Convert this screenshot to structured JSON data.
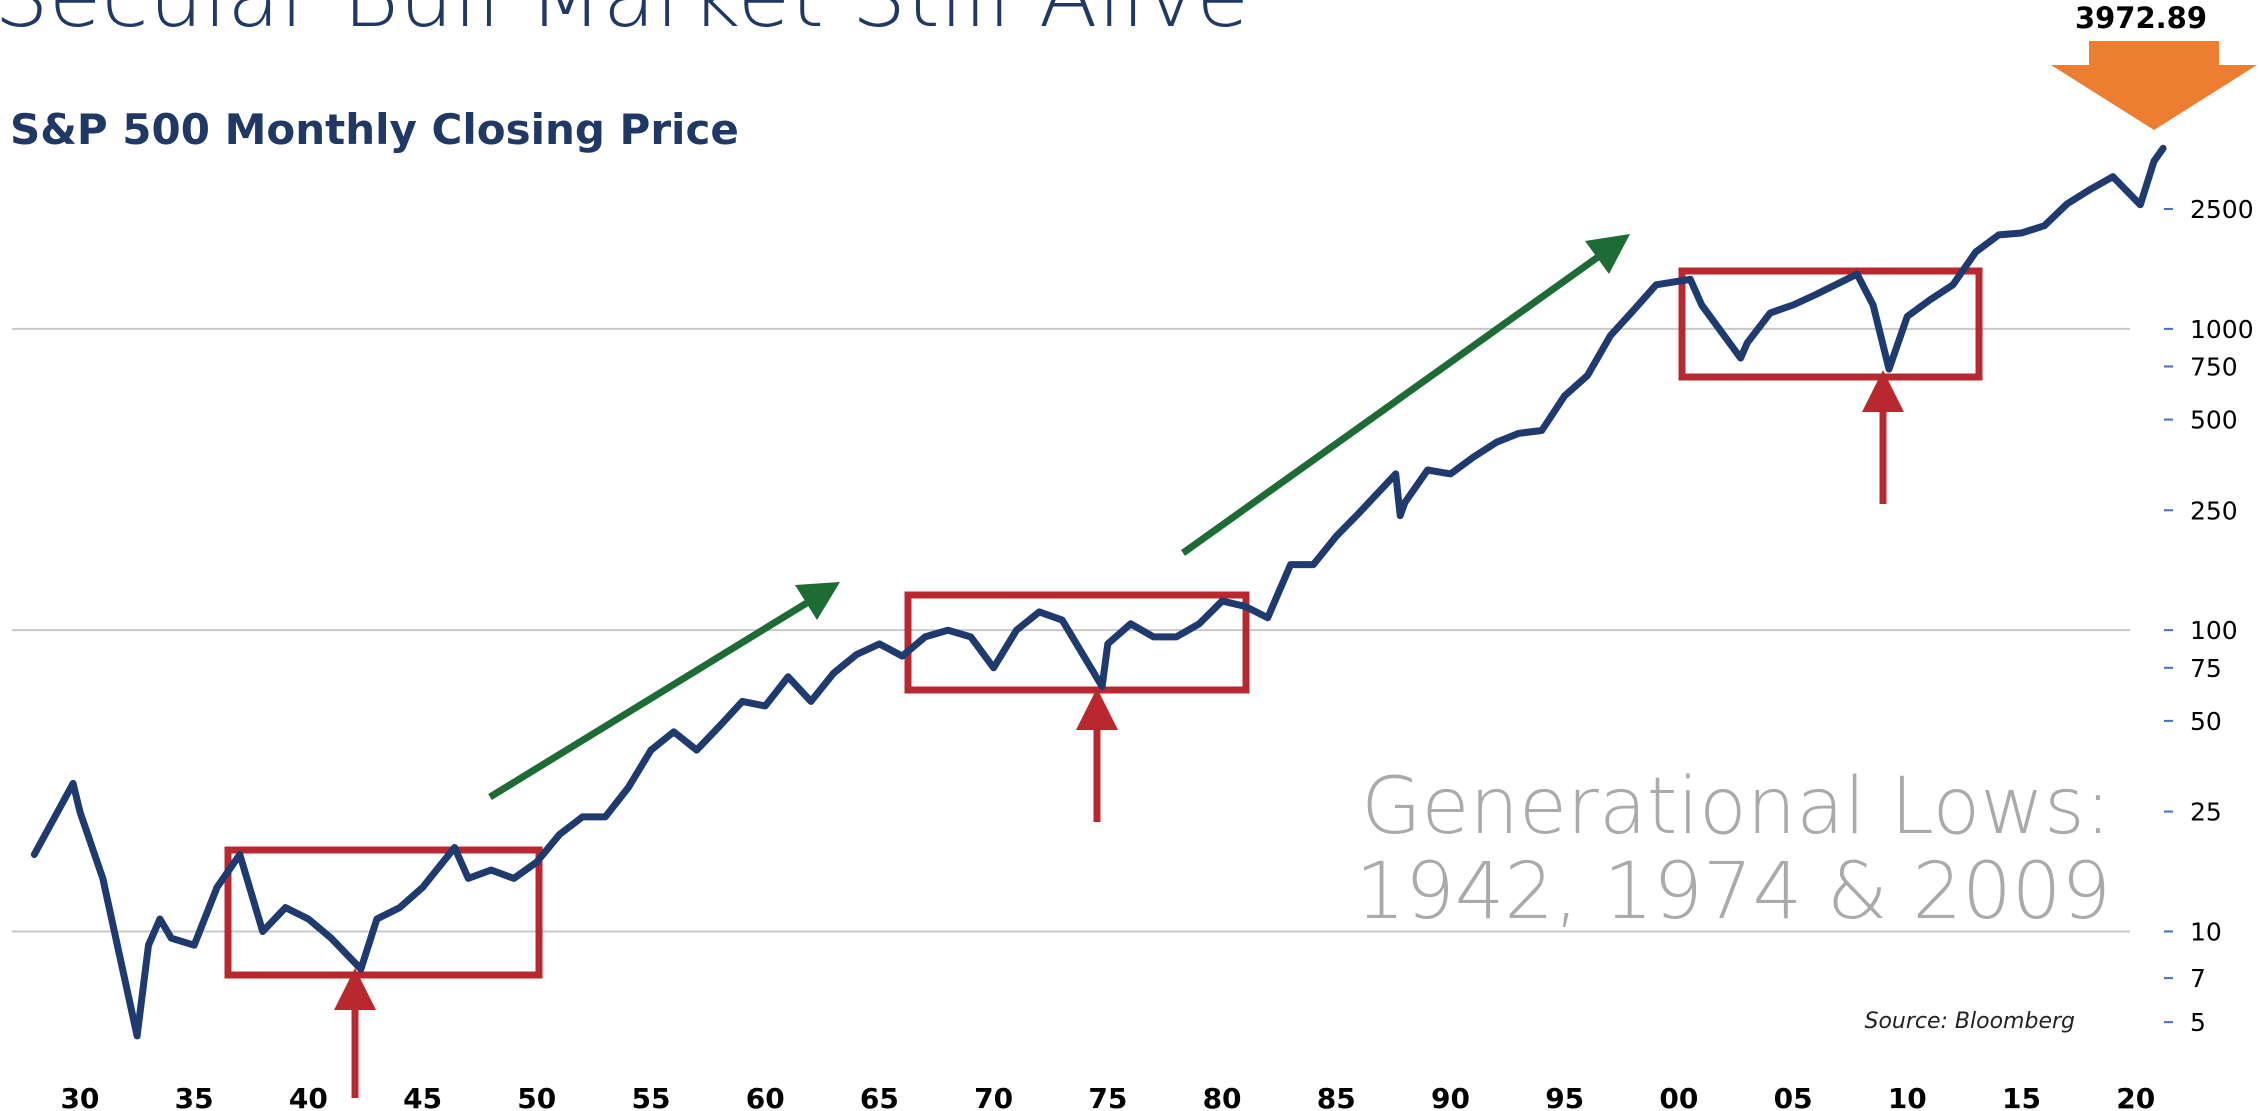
{
  "chart_data": {
    "type": "line",
    "title": "Secular Bull Market Still Alive",
    "subtitle": "S&P 500 Monthly Closing Price",
    "annotations": [
      "Generational Lows:",
      "1942, 1974 & 2009"
    ],
    "source": "Source: Bloomberg",
    "color": "#1f3a6e",
    "log_scale": true,
    "grid_values": [
      10,
      100,
      1000
    ],
    "xlim": [
      1926.5,
      2021.5
    ],
    "ylim": [
      3,
      6000
    ],
    "xticks": [
      {
        "value": 1930,
        "label": "30"
      },
      {
        "value": 1935,
        "label": "35"
      },
      {
        "value": 1940,
        "label": "40"
      },
      {
        "value": 1945,
        "label": "45"
      },
      {
        "value": 1950,
        "label": "50"
      },
      {
        "value": 1955,
        "label": "55"
      },
      {
        "value": 1960,
        "label": "60"
      },
      {
        "value": 1965,
        "label": "65"
      },
      {
        "value": 1970,
        "label": "70"
      },
      {
        "value": 1975,
        "label": "75"
      },
      {
        "value": 1980,
        "label": "80"
      },
      {
        "value": 1985,
        "label": "85"
      },
      {
        "value": 1990,
        "label": "90"
      },
      {
        "value": 1995,
        "label": "95"
      },
      {
        "value": 2000,
        "label": "00"
      },
      {
        "value": 2005,
        "label": "05"
      },
      {
        "value": 2010,
        "label": "10"
      },
      {
        "value": 2015,
        "label": "15"
      },
      {
        "value": 2020,
        "label": "20"
      }
    ],
    "yticks": [
      5,
      7,
      10,
      25,
      50,
      75,
      100,
      250,
      500,
      750,
      1000,
      2500
    ],
    "x": [
      1928,
      1929.7,
      1930,
      1931,
      1932.5,
      1933,
      1933.5,
      1934,
      1935,
      1936,
      1937,
      1938,
      1939,
      1940,
      1941,
      1942.3,
      1943,
      1944,
      1945,
      1946.4,
      1947,
      1948,
      1949,
      1950,
      1951,
      1952,
      1953,
      1954,
      1955,
      1956,
      1957,
      1958,
      1959,
      1960,
      1961,
      1962,
      1963,
      1964,
      1965,
      1966,
      1967,
      1968,
      1969,
      1970,
      1971,
      1972,
      1973,
      1974.75,
      1975,
      1976,
      1977,
      1978,
      1979,
      1980,
      1981,
      1982,
      1983,
      1984,
      1985,
      1986,
      1987.6,
      1987.8,
      1988,
      1989,
      1990,
      1991,
      1992,
      1993,
      1994,
      1995,
      1996,
      1997,
      1998,
      1999,
      2000.5,
      2001,
      2002.7,
      2003,
      2004,
      2005,
      2006,
      2007.8,
      2008.5,
      2009.2,
      2010,
      2011,
      2012,
      2013,
      2014,
      2015,
      2016,
      2017,
      2018,
      2019,
      2020.2,
      2020.8,
      2021.2
    ],
    "values": [
      18,
      31,
      25,
      15,
      4.5,
      9,
      11,
      9.5,
      9,
      14,
      18,
      10,
      12,
      11,
      9.5,
      7.5,
      11,
      12,
      14,
      19,
      15,
      16,
      15,
      17,
      21,
      24,
      24,
      30,
      40,
      46,
      40,
      48,
      58,
      56,
      70,
      58,
      72,
      83,
      90,
      82,
      95,
      100,
      95,
      75,
      100,
      115,
      108,
      65,
      90,
      105,
      95,
      95,
      105,
      125,
      120,
      110,
      165,
      165,
      205,
      245,
      330,
      240,
      265,
      340,
      330,
      375,
      420,
      450,
      460,
      600,
      700,
      950,
      1150,
      1400,
      1460,
      1200,
      800,
      900,
      1130,
      1200,
      1300,
      1520,
      1200,
      735,
      1100,
      1250,
      1400,
      1800,
      2050,
      2080,
      2200,
      2600,
      2900,
      3200,
      2580,
      3600,
      3972.89
    ]
  }
}
